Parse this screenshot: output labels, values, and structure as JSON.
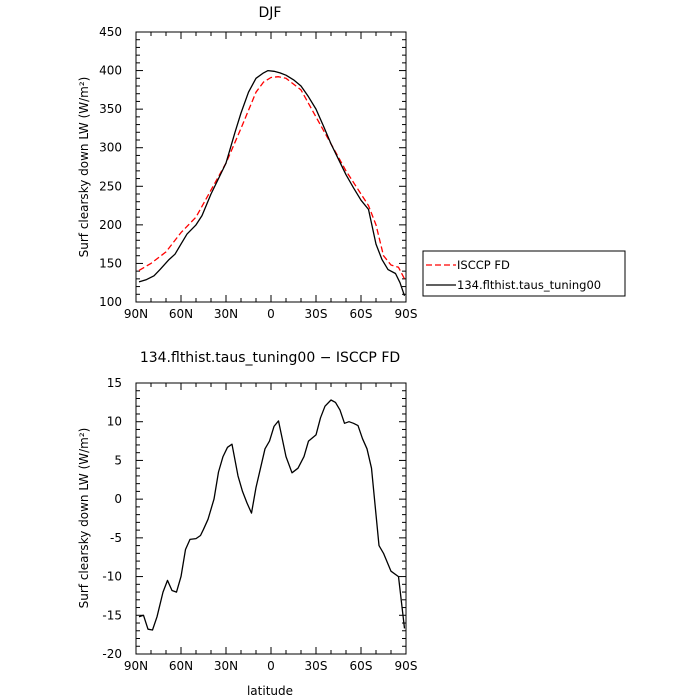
{
  "colors": {
    "obs": "#ff0000",
    "model": "#000000",
    "axis": "#000000"
  },
  "legend": {
    "entries": [
      {
        "label": "ISCCP FD",
        "style": "dashed",
        "color": "#ff0000"
      },
      {
        "label": "134.flthist.taus_tuning00",
        "style": "solid",
        "color": "#000000"
      }
    ]
  },
  "chart_data": [
    {
      "type": "line",
      "title": "DJF",
      "xlabel": "",
      "ylabel": "Surf clearsky down LW (W/m²)",
      "x_reversed": true,
      "xlim": [
        -90,
        90
      ],
      "ylim": [
        100,
        450
      ],
      "xticks": [
        {
          "value": 90,
          "label": "90N"
        },
        {
          "value": 60,
          "label": "60N"
        },
        {
          "value": 30,
          "label": "30N"
        },
        {
          "value": 0,
          "label": "0"
        },
        {
          "value": -30,
          "label": "30S"
        },
        {
          "value": -60,
          "label": "60S"
        },
        {
          "value": -90,
          "label": "90S"
        }
      ],
      "yticks": [
        100,
        150,
        200,
        250,
        300,
        350,
        400,
        450
      ],
      "series": [
        {
          "name": "ISCCP FD",
          "style": "dashed",
          "color": "#ff0000",
          "x": [
            88,
            80,
            70,
            60,
            50,
            40,
            30,
            20,
            10,
            5,
            0,
            -5,
            -10,
            -20,
            -30,
            -40,
            -50,
            -60,
            -65,
            -70,
            -75,
            -80,
            -85,
            -89
          ],
          "y": [
            141,
            150,
            165,
            190,
            210,
            245,
            280,
            325,
            372,
            385,
            391,
            392,
            390,
            375,
            340,
            305,
            270,
            240,
            225,
            200,
            160,
            148,
            145,
            130
          ]
        },
        {
          "name": "134.flthist.taus_tuning00",
          "style": "solid",
          "color": "#000000",
          "x": [
            88,
            83,
            78,
            74,
            68,
            64,
            60,
            56,
            50,
            46,
            40,
            35,
            30,
            24,
            20,
            15,
            10,
            5,
            2,
            -2,
            -6,
            -10,
            -15,
            -20,
            -25,
            -30,
            -35,
            -40,
            -45,
            -50,
            -55,
            -60,
            -65,
            -70,
            -74,
            -78,
            -83,
            -86,
            -89
          ],
          "y": [
            126,
            129,
            134,
            142,
            155,
            162,
            175,
            188,
            200,
            212,
            240,
            260,
            280,
            320,
            345,
            372,
            390,
            397,
            400,
            399,
            397,
            394,
            388,
            380,
            366,
            350,
            328,
            305,
            285,
            265,
            248,
            232,
            220,
            175,
            155,
            142,
            137,
            125,
            108
          ]
        }
      ]
    },
    {
      "type": "line",
      "title": "134.flthist.taus_tuning00 − ISCCP FD",
      "xlabel": "latitude",
      "ylabel": "Surf clearsky down LW (W/m²)",
      "x_reversed": true,
      "xlim": [
        -90,
        90
      ],
      "ylim": [
        -20,
        15
      ],
      "xticks": [
        {
          "value": 90,
          "label": "90N"
        },
        {
          "value": 60,
          "label": "60N"
        },
        {
          "value": 30,
          "label": "30N"
        },
        {
          "value": 0,
          "label": "0"
        },
        {
          "value": -30,
          "label": "30S"
        },
        {
          "value": -60,
          "label": "60S"
        },
        {
          "value": -90,
          "label": "90S"
        }
      ],
      "yticks": [
        -20,
        -15,
        -10,
        -5,
        0,
        5,
        10,
        15
      ],
      "series": [
        {
          "name": "134.flthist.taus_tuning00",
          "style": "solid",
          "color": "#000000",
          "x": [
            88,
            85,
            82,
            79,
            76,
            72,
            69,
            66,
            63,
            60,
            57,
            54,
            50,
            47,
            45,
            42,
            38,
            35,
            32,
            29,
            26,
            22,
            19,
            16,
            13,
            10,
            7,
            4,
            1,
            -2,
            -5,
            -10,
            -14,
            -18,
            -22,
            -25,
            -30,
            -33,
            -36,
            -40,
            -43,
            -46,
            -49,
            -52,
            -55,
            -58,
            -61,
            -64,
            -67,
            -70,
            -72,
            -75,
            -80,
            -85,
            -89
          ],
          "y": [
            -15.2,
            -15,
            -16.8,
            -16.9,
            -15.2,
            -12,
            -10.5,
            -11.8,
            -12,
            -10,
            -6.5,
            -5.2,
            -5.1,
            -4.7,
            -3.9,
            -2.6,
            0,
            3.5,
            5.5,
            6.7,
            7.1,
            3,
            1,
            -0.5,
            -1.8,
            1.5,
            4,
            6.5,
            7.5,
            9.4,
            10.1,
            5.5,
            3.4,
            4,
            5.5,
            7.5,
            8.3,
            10.5,
            12,
            12.8,
            12.5,
            11.5,
            9.8,
            10,
            9.8,
            9.5,
            7.8,
            6.5,
            4,
            -2,
            -6,
            -7,
            -9.3,
            -10,
            -16.7
          ]
        }
      ]
    }
  ]
}
